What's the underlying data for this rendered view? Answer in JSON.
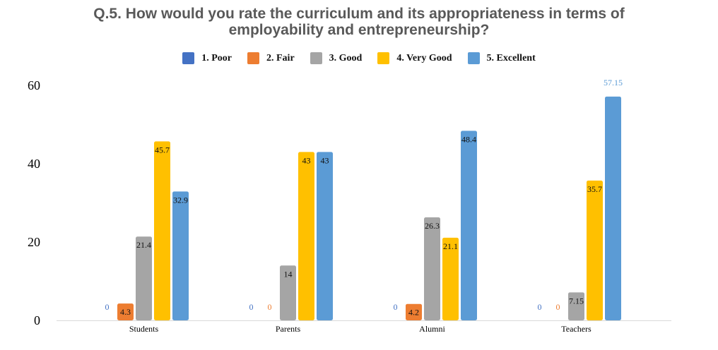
{
  "chart_data": {
    "type": "bar",
    "title_lines": [
      "Q.5. How would you rate the curriculum and its appropriateness in terms of",
      "employability and entrepreneurship?"
    ],
    "categories": [
      "Students",
      "Parents",
      "Alumni",
      "Teachers"
    ],
    "series": [
      {
        "name": "1.  Poor",
        "color": "#4472C4",
        "values": [
          0,
          0,
          0,
          0
        ],
        "labels": [
          "0",
          "0",
          "0",
          "0"
        ]
      },
      {
        "name": "2.  Fair",
        "color": "#ED7D31",
        "values": [
          4.3,
          0,
          4.2,
          0
        ],
        "labels": [
          "4.3",
          "0",
          "4.2",
          "0"
        ]
      },
      {
        "name": "3.  Good",
        "color": "#A5A5A5",
        "values": [
          21.4,
          14,
          26.3,
          7.15
        ],
        "labels": [
          "21.4",
          "14",
          "26.3",
          "7.15"
        ]
      },
      {
        "name": "4.  Very Good",
        "color": "#FFC000",
        "values": [
          45.7,
          43,
          21.1,
          35.7
        ],
        "labels": [
          "45.7",
          "43",
          "21.1",
          "35.7"
        ]
      },
      {
        "name": "5.  Excellent",
        "color": "#5B9BD5",
        "values": [
          32.9,
          43,
          48.4,
          57.15
        ],
        "labels": [
          "32.9",
          "43",
          "48.4",
          "57.15"
        ]
      }
    ],
    "y_ticks": [
      "0",
      "20",
      "40",
      "60"
    ],
    "ylim": [
      0,
      60
    ],
    "legend": "top-center",
    "grid": false
  }
}
